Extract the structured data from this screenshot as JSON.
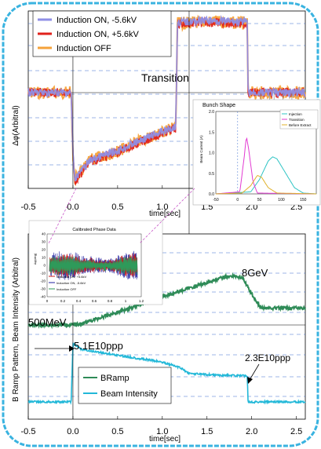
{
  "colors": {
    "frame_cyan": "#39b3e0",
    "ind_minus": "#8f8fe6",
    "ind_plus": "#e0211b",
    "ind_off": "#f5a23a",
    "bramp": "#2e8b57",
    "intensity": "#22b8d8",
    "inj_curve": "#2ec4c4",
    "trans_curve": "#e23ad2",
    "before_curve": "#e0b12a",
    "cal_blue": "#1f1fa0",
    "cal_red": "#d01818",
    "cal_green": "#2e9a5a",
    "dash": "#3d6fd0",
    "guide": "#c040c0"
  },
  "top_panel": {
    "ylabel": "Δφ(Arbitral)",
    "annotation": "Transition",
    "xlabel": "time[sec]",
    "xticks": [
      "-0.5",
      "0.0",
      "0.5",
      "1.0",
      "1.5",
      "2.0",
      "2.5"
    ],
    "legend": [
      {
        "label": "Induction ON, -5.6kV",
        "color": "#8f8fe6"
      },
      {
        "label": "Induction ON, +5.6kV",
        "color": "#e0211b"
      },
      {
        "label": "Induction OFF",
        "color": "#f5a23a"
      }
    ]
  },
  "bunch_inset": {
    "title": "Bunch Shape",
    "ylabel": "Beam Current (A)",
    "yticks": [
      "0.0",
      "0.5",
      "1.0",
      "1.5",
      "2.0"
    ],
    "xticks": [
      "-50",
      "0",
      "50",
      "100",
      "150"
    ],
    "legend": [
      "Injection",
      "Transition",
      "Before Extract"
    ]
  },
  "cal_inset": {
    "title": "Calibrated Phase Data",
    "ylabel": "Δφ(deg)",
    "yticks": [
      "40",
      "30",
      "20",
      "10",
      "0",
      "-10",
      "-20",
      "-30",
      "-40"
    ],
    "xticks": [
      "0",
      "0.2",
      "0.4",
      "0.6",
      "0.8",
      "1",
      "1.2"
    ],
    "legend": [
      "Induction ON, +5.6kV",
      "Induction ON, -5.6kV",
      "Induction OFF"
    ]
  },
  "bottom_panel": {
    "ylabel": "B Ramp Pattern, Beam Intensity (Arbitral)",
    "xlabel": "time[sec]",
    "xticks": [
      "-0.5",
      "0.0",
      "0.5",
      "1.0",
      "1.5",
      "2.0",
      "2.5"
    ],
    "label_8gev": "8GeV",
    "label_500mev": "500MeV",
    "label_5e10": "5.1E10ppp",
    "label_23e10": "2.3E10ppp",
    "legend": [
      {
        "label": "BRamp",
        "color": "#2e8b57"
      },
      {
        "label": "Beam Intensity",
        "color": "#22b8d8"
      }
    ]
  },
  "chart_data": [
    {
      "type": "line",
      "panel": "phase_oscillation",
      "xlabel": "time[sec]",
      "ylabel": "Δφ(Arbitral)",
      "xlim": [
        -0.5,
        2.6
      ],
      "series": [
        {
          "name": "Induction ON, -5.6kV",
          "x": [
            -0.5,
            -0.02,
            0.0,
            0.02,
            0.2,
            0.5,
            0.8,
            1.15,
            1.17,
            1.2,
            1.5,
            1.95,
            1.96,
            2.6
          ],
          "y": [
            0.0,
            0.0,
            -1.0,
            -1.4,
            -1.1,
            -0.95,
            -0.75,
            -0.55,
            1.15,
            1.15,
            1.18,
            1.15,
            0.0,
            0.0
          ]
        },
        {
          "name": "Induction ON, +5.6kV",
          "x": [
            -0.5,
            -0.02,
            0.0,
            0.02,
            0.2,
            0.5,
            0.8,
            1.15,
            1.17,
            1.2,
            1.5,
            1.95,
            1.96,
            2.6
          ],
          "y": [
            0.0,
            0.0,
            -1.0,
            -1.45,
            -1.12,
            -0.97,
            -0.78,
            -0.58,
            1.12,
            1.12,
            1.15,
            1.12,
            0.0,
            0.0
          ]
        },
        {
          "name": "Induction OFF",
          "x": [
            -0.5,
            -0.02,
            0.0,
            0.02,
            0.2,
            0.5,
            0.8,
            1.15,
            1.17,
            1.2,
            1.5,
            1.95,
            1.96,
            2.6
          ],
          "y": [
            0.0,
            0.0,
            -1.0,
            -1.42,
            -1.1,
            -0.96,
            -0.76,
            -0.56,
            1.13,
            1.13,
            1.16,
            1.13,
            0.0,
            0.0
          ]
        }
      ]
    },
    {
      "type": "line",
      "panel": "bunch_shape",
      "title": "Bunch Shape",
      "ylabel": "Beam Current (A)",
      "xlim": [
        -50,
        180
      ],
      "ylim": [
        0,
        2.0
      ],
      "series": [
        {
          "name": "Injection",
          "x": [
            -50,
            30,
            50,
            70,
            80,
            90,
            110,
            130,
            150,
            180
          ],
          "y": [
            0,
            0.05,
            0.35,
            0.8,
            0.9,
            0.85,
            0.5,
            0.15,
            0.02,
            0
          ]
        },
        {
          "name": "Transition",
          "x": [
            -50,
            5,
            15,
            20,
            25,
            35,
            45,
            180
          ],
          "y": [
            0,
            0.05,
            0.9,
            1.4,
            1.1,
            0.3,
            0.02,
            0
          ]
        },
        {
          "name": "Before Extract",
          "x": [
            -50,
            10,
            30,
            45,
            55,
            70,
            90,
            180
          ],
          "y": [
            0,
            0.02,
            0.2,
            0.45,
            0.4,
            0.15,
            0.02,
            0
          ]
        }
      ]
    },
    {
      "type": "line",
      "panel": "calibrated_phase",
      "title": "Calibrated Phase Data",
      "ylabel": "Δφ(deg)",
      "xlim": [
        0,
        1.2
      ],
      "ylim": [
        -40,
        40
      ],
      "series": [
        {
          "name": "Induction ON, +5.6kV",
          "x": [
            0,
            0.1,
            0.3,
            0.5,
            0.7,
            0.9,
            1.1
          ],
          "y": [
            0,
            12,
            8,
            14,
            10,
            9,
            8
          ]
        },
        {
          "name": "Induction ON, -5.6kV",
          "x": [
            0,
            0.1,
            0.3,
            0.5,
            0.7,
            0.9,
            1.1
          ],
          "y": [
            0,
            14,
            10,
            16,
            12,
            11,
            10
          ]
        },
        {
          "name": "Induction OFF",
          "x": [
            0,
            0.1,
            0.3,
            0.5,
            0.7,
            0.9,
            1.1
          ],
          "y": [
            0,
            10,
            7,
            12,
            8,
            7,
            6
          ]
        }
      ]
    },
    {
      "type": "line",
      "panel": "bramp_intensity",
      "xlabel": "time[sec]",
      "ylabel": "B Ramp Pattern, Beam Intensity (Arbitral)",
      "xlim": [
        -0.5,
        2.6
      ],
      "series": [
        {
          "name": "BRamp",
          "x": [
            -0.5,
            0.0,
            0.1,
            0.5,
            1.0,
            1.5,
            1.7,
            1.8,
            1.9,
            2.0,
            2.1,
            2.6
          ],
          "y": [
            0.5,
            0.5,
            0.55,
            0.95,
            1.5,
            2.0,
            2.2,
            2.25,
            2.15,
            1.6,
            1.1,
            1.1
          ]
        },
        {
          "name": "Beam Intensity",
          "x": [
            -0.5,
            -0.02,
            0.0,
            0.1,
            0.5,
            1.0,
            1.2,
            1.3,
            1.6,
            1.9,
            1.95,
            1.96,
            2.6
          ],
          "y": [
            0.0,
            0.0,
            5.1,
            4.6,
            4.1,
            3.5,
            3.0,
            2.5,
            2.35,
            2.3,
            2.3,
            0.0,
            0.0
          ]
        }
      ]
    }
  ]
}
